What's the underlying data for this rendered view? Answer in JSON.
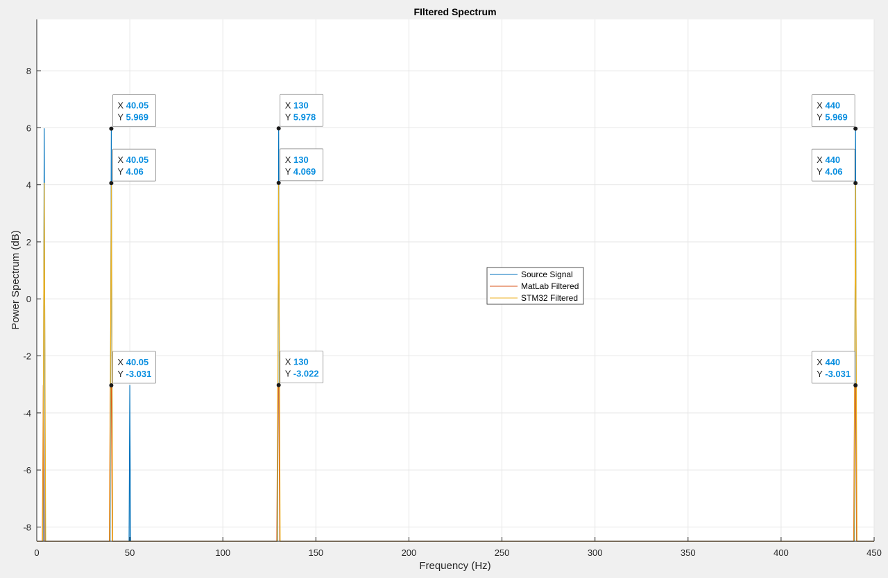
{
  "chart_data": {
    "type": "line",
    "title": "FIltered Spectrum",
    "xlabel": "Frequency (Hz)",
    "ylabel": "Power Spectrum (dB)",
    "xlim": [
      0,
      450
    ],
    "ylim": [
      -8.5,
      9.8
    ],
    "xticks": [
      0,
      50,
      100,
      150,
      200,
      250,
      300,
      350,
      400,
      450
    ],
    "yticks": [
      -8,
      -6,
      -4,
      -2,
      0,
      2,
      4,
      6,
      8
    ],
    "grid": true,
    "legend_position": "center",
    "series": [
      {
        "name": "Source Signal",
        "color": "#0072bd",
        "points": [
          [
            0,
            -8.5
          ],
          [
            3.4,
            -8.5
          ],
          [
            4,
            5.97
          ],
          [
            4.6,
            -8.5
          ],
          [
            39.4,
            -8.5
          ],
          [
            40.05,
            5.969
          ],
          [
            40.7,
            -8.5
          ],
          [
            49.6,
            -8.5
          ],
          [
            50,
            -3.03
          ],
          [
            50.4,
            -8.5
          ],
          [
            129.4,
            -8.5
          ],
          [
            130,
            5.978
          ],
          [
            130.6,
            -8.5
          ],
          [
            439.4,
            -8.5
          ],
          [
            440,
            5.969
          ],
          [
            440.6,
            -8.5
          ],
          [
            450,
            -8.5
          ]
        ]
      },
      {
        "name": "MatLab Filtered",
        "color": "#d95319",
        "points": [
          [
            0,
            -8.5
          ],
          [
            3,
            -8.5
          ],
          [
            3.5,
            -3.03
          ],
          [
            4,
            -8.5
          ],
          [
            39,
            -8.5
          ],
          [
            39.5,
            -3.03
          ],
          [
            40.05,
            -3.031
          ],
          [
            40.6,
            -8.5
          ],
          [
            129,
            -8.5
          ],
          [
            129.5,
            -3.03
          ],
          [
            130,
            -3.022
          ],
          [
            130.6,
            -8.5
          ],
          [
            439,
            -8.5
          ],
          [
            439.5,
            -3.03
          ],
          [
            440,
            -3.031
          ],
          [
            440.6,
            -8.5
          ],
          [
            450,
            -8.5
          ]
        ]
      },
      {
        "name": "STM32 Filtered",
        "color": "#edb120",
        "points": [
          [
            0,
            -8.5
          ],
          [
            3.2,
            -8.5
          ],
          [
            4,
            4.06
          ],
          [
            4.8,
            -8.5
          ],
          [
            39.2,
            -8.5
          ],
          [
            40.05,
            4.06
          ],
          [
            40.8,
            -8.5
          ],
          [
            129.2,
            -8.5
          ],
          [
            130,
            4.069
          ],
          [
            130.8,
            -8.5
          ],
          [
            439.2,
            -8.5
          ],
          [
            440,
            4.06
          ],
          [
            440.8,
            -8.5
          ],
          [
            450,
            -8.5
          ]
        ]
      }
    ],
    "datatips": [
      {
        "x": 40.05,
        "y": 5.969,
        "x_label": "40.05",
        "y_label": "5.969",
        "side": "right"
      },
      {
        "x": 40.05,
        "y": 4.06,
        "x_label": "40.05",
        "y_label": "4.06",
        "side": "right"
      },
      {
        "x": 40.05,
        "y": -3.031,
        "x_label": "40.05",
        "y_label": "-3.031",
        "side": "right"
      },
      {
        "x": 130,
        "y": 5.978,
        "x_label": "130",
        "y_label": "5.978",
        "side": "right"
      },
      {
        "x": 130,
        "y": 4.069,
        "x_label": "130",
        "y_label": "4.069",
        "side": "right"
      },
      {
        "x": 130,
        "y": -3.022,
        "x_label": "130",
        "y_label": "-3.022",
        "side": "right"
      },
      {
        "x": 440,
        "y": 5.969,
        "x_label": "440",
        "y_label": "5.969",
        "side": "left"
      },
      {
        "x": 440,
        "y": 4.06,
        "x_label": "440",
        "y_label": "4.06",
        "side": "left"
      },
      {
        "x": 440,
        "y": -3.031,
        "x_label": "440",
        "y_label": "-3.031",
        "side": "left"
      }
    ],
    "datatip_x_prefix": "X",
    "datatip_y_prefix": "Y"
  },
  "colors": {
    "figure_bg": "#f0f0f0",
    "axes_bg": "#ffffff",
    "grid": "#e6e6e6",
    "axis": "#262626",
    "datatip_value": "#0b8fe0"
  }
}
